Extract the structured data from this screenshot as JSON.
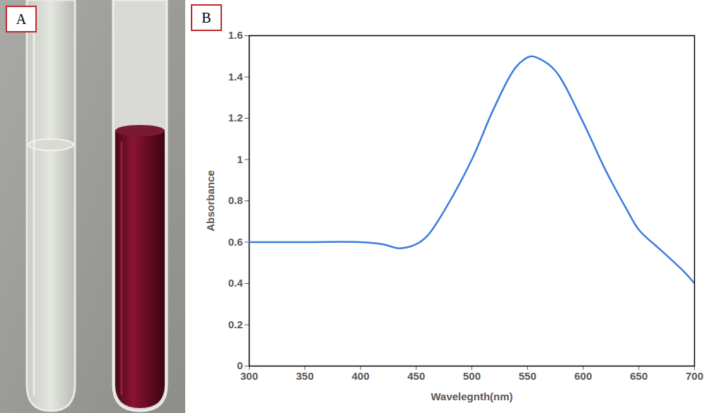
{
  "photo_panel": {
    "label": "A"
  },
  "chart_data": {
    "type": "line",
    "panel_label": "B",
    "xlabel": "Wavelegnth(nm)",
    "ylabel": "Absorbance",
    "x": [
      300,
      350,
      400,
      420,
      435,
      450,
      460,
      475,
      500,
      520,
      540,
      553,
      560,
      575,
      600,
      620,
      640,
      650,
      670,
      690,
      700
    ],
    "values": [
      0.6,
      0.6,
      0.6,
      0.59,
      0.57,
      0.59,
      0.63,
      0.75,
      1.0,
      1.25,
      1.45,
      1.5,
      1.49,
      1.43,
      1.18,
      0.95,
      0.75,
      0.66,
      0.56,
      0.46,
      0.4
    ],
    "color": "#3b7ddd",
    "line_style": "solid",
    "xlim": [
      300,
      700
    ],
    "xticks": [
      300,
      350,
      400,
      450,
      500,
      550,
      600,
      650,
      700
    ],
    "ylim": [
      0,
      1.6
    ],
    "yticks": [
      0,
      0.2,
      0.4,
      0.6,
      0.8,
      1,
      1.2,
      1.4,
      1.6
    ],
    "grid": false
  }
}
